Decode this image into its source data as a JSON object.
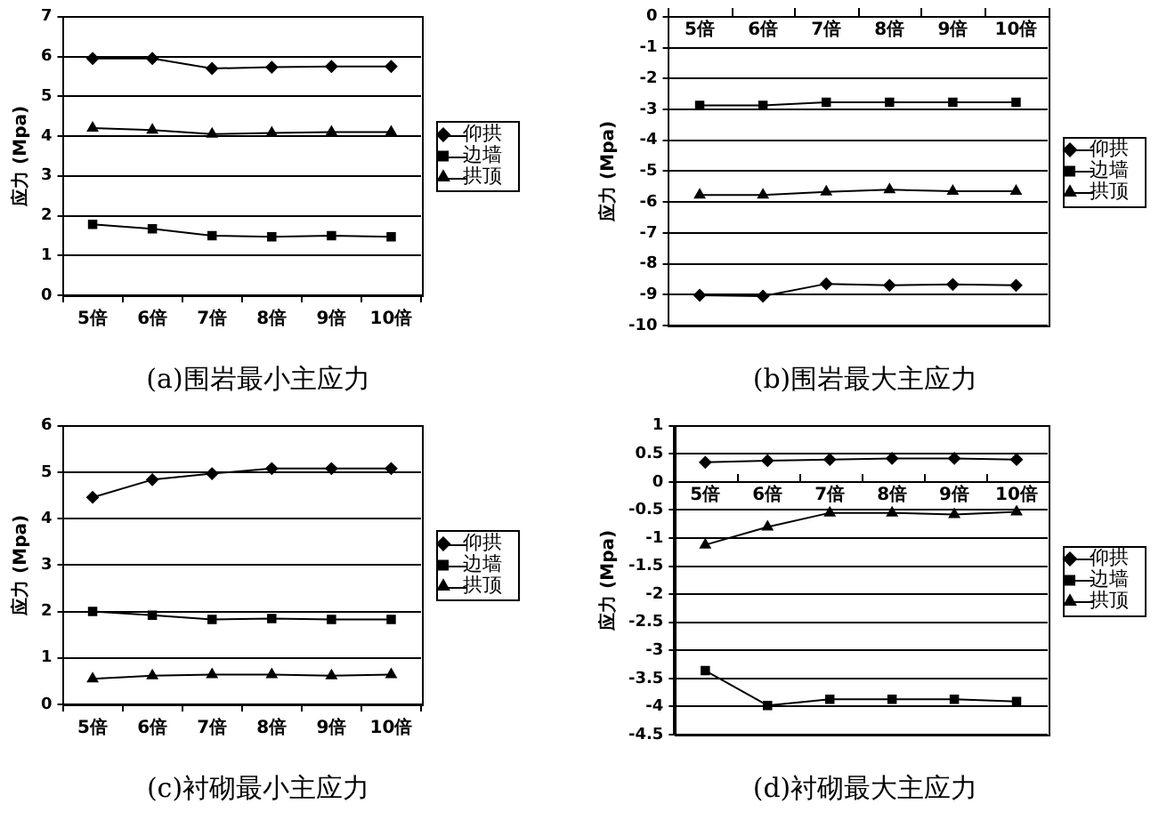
{
  "chart_data": [
    {
      "type": "line",
      "title": "(a)围岩最小主应力",
      "ylabel": "应力 (Mpa)",
      "categories": [
        "5倍",
        "6倍",
        "7倍",
        "8倍",
        "9倍",
        "10倍"
      ],
      "series": [
        {
          "name": "仰拱",
          "color": "#000000",
          "marker": "diamond",
          "values": [
            5.95,
            5.95,
            5.7,
            5.73,
            5.75,
            5.75
          ]
        },
        {
          "name": "边墙",
          "color": "#000000",
          "marker": "square",
          "values": [
            1.78,
            1.67,
            1.5,
            1.47,
            1.5,
            1.47
          ]
        },
        {
          "name": "拱顶",
          "color": "#000000",
          "marker": "triangle",
          "values": [
            4.2,
            4.15,
            4.05,
            4.08,
            4.1,
            4.1
          ]
        }
      ],
      "ylim": [
        0,
        7
      ],
      "yticks": [
        0,
        1,
        2,
        3,
        4,
        5,
        6,
        7
      ],
      "grid": "y",
      "legend": "right",
      "line_style": "solid"
    },
    {
      "type": "line",
      "title": "(b)围岩最大主应力",
      "ylabel": "应力 (Mpa)",
      "categories": [
        "5倍",
        "6倍",
        "7倍",
        "8倍",
        "9倍",
        "10倍"
      ],
      "series": [
        {
          "name": "仰拱",
          "color": "#000000",
          "marker": "diamond",
          "values": [
            -9.02,
            -9.05,
            -8.65,
            -8.7,
            -8.67,
            -8.7
          ]
        },
        {
          "name": "边墙",
          "color": "#000000",
          "marker": "square",
          "values": [
            -2.87,
            -2.87,
            -2.77,
            -2.77,
            -2.77,
            -2.77
          ]
        },
        {
          "name": "拱顶",
          "color": "#000000",
          "marker": "triangle",
          "values": [
            -5.77,
            -5.77,
            -5.67,
            -5.6,
            -5.65,
            -5.65
          ]
        }
      ],
      "ylim": [
        -10,
        0
      ],
      "yticks": [
        -10,
        -9,
        -8,
        -7,
        -6,
        -5,
        -4,
        -3,
        -2,
        -1,
        0
      ],
      "grid": "y",
      "legend": "right",
      "line_style": "solid"
    },
    {
      "type": "line",
      "title": "(c)衬砌最小主应力",
      "ylabel": "应力 (Mpa)",
      "categories": [
        "5倍",
        "6倍",
        "7倍",
        "8倍",
        "9倍",
        "10倍"
      ],
      "series": [
        {
          "name": "仰拱",
          "color": "#000000",
          "marker": "diamond",
          "values": [
            4.46,
            4.84,
            4.97,
            5.08,
            5.08,
            5.08
          ]
        },
        {
          "name": "边墙",
          "color": "#000000",
          "marker": "square",
          "values": [
            2.0,
            1.92,
            1.83,
            1.85,
            1.83,
            1.83
          ]
        },
        {
          "name": "拱顶",
          "color": "#000000",
          "marker": "triangle",
          "values": [
            0.55,
            0.62,
            0.64,
            0.64,
            0.62,
            0.64
          ]
        }
      ],
      "ylim": [
        0,
        6
      ],
      "yticks": [
        0,
        1,
        2,
        3,
        4,
        5,
        6
      ],
      "grid": "y",
      "legend": "right",
      "line_style": "solid"
    },
    {
      "type": "line",
      "title": "(d)衬砌最大主应力",
      "ylabel": "应力 (Mpa)",
      "categories": [
        "5倍",
        "6倍",
        "7倍",
        "8倍",
        "9倍",
        "10倍"
      ],
      "series": [
        {
          "name": "仰拱",
          "color": "#000000",
          "marker": "diamond",
          "values": [
            0.35,
            0.38,
            0.4,
            0.42,
            0.42,
            0.4
          ]
        },
        {
          "name": "边墙",
          "color": "#000000",
          "marker": "square",
          "values": [
            -3.36,
            -3.98,
            -3.87,
            -3.87,
            -3.87,
            -3.91
          ]
        },
        {
          "name": "拱顶",
          "color": "#000000",
          "marker": "triangle",
          "values": [
            -1.12,
            -0.8,
            -0.55,
            -0.55,
            -0.58,
            -0.53
          ]
        }
      ],
      "ylim": [
        -4.5,
        1
      ],
      "yticks": [
        -4.5,
        -4,
        -3.5,
        -3,
        -2.5,
        -2,
        -1.5,
        -1,
        -0.5,
        0,
        0.5,
        1
      ],
      "grid": "y",
      "legend": "right",
      "line_style": "solid"
    }
  ]
}
